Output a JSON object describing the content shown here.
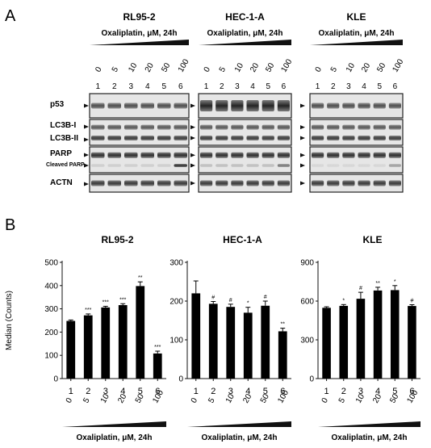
{
  "figure": {
    "panel_a_label": "A",
    "panel_b_label": "B",
    "treatment_label": "Oxaliplatin, μM, 24h",
    "doses": [
      "0",
      "5",
      "10",
      "20",
      "50",
      "100"
    ],
    "lanes": [
      "1",
      "2",
      "3",
      "4",
      "5",
      "6"
    ],
    "cell_lines": [
      "RL95-2",
      "HEC-1-A",
      "KLE"
    ],
    "blot_labels": {
      "p53": "p53",
      "lc3b_i": "LC3B-I",
      "lc3b_ii": "LC3B-II",
      "parp": "PARP",
      "cleaved_parp": "Cleaved PARP",
      "actn": "ACTN"
    },
    "y_axis_label": "Median (Counts)"
  },
  "chart_data": [
    {
      "type": "bar",
      "title": "RL95-2",
      "categories": [
        "1",
        "2",
        "3",
        "4",
        "5",
        "6"
      ],
      "dose_labels": [
        "0",
        "5",
        "10",
        "20",
        "50",
        "100"
      ],
      "values": [
        248,
        272,
        306,
        316,
        398,
        108
      ],
      "errors": [
        4,
        6,
        5,
        6,
        18,
        10
      ],
      "significance": [
        "",
        "***",
        "***",
        "***",
        "**",
        "***"
      ],
      "xlabel": "Oxaliplatin, μM, 24h",
      "ylabel": "Median (Counts)",
      "ylim": [
        0,
        500
      ],
      "yticks": [
        "0",
        "100",
        "200",
        "300",
        "400",
        "500"
      ]
    },
    {
      "type": "bar",
      "title": "HEC-1-A",
      "categories": [
        "1",
        "2",
        "3",
        "4",
        "5",
        "6"
      ],
      "dose_labels": [
        "0",
        "5",
        "10",
        "20",
        "50",
        "100"
      ],
      "values": [
        220,
        193,
        185,
        170,
        188,
        122
      ],
      "errors": [
        32,
        6,
        7,
        14,
        12,
        8
      ],
      "significance": [
        "",
        "#",
        "#",
        "*",
        "#",
        "**"
      ],
      "xlabel": "Oxaliplatin, μM, 24h",
      "ylim": [
        0,
        300
      ],
      "yticks": [
        "0",
        "100",
        "200",
        "300"
      ]
    },
    {
      "type": "bar",
      "title": "KLE",
      "categories": [
        "1",
        "2",
        "3",
        "4",
        "5",
        "6"
      ],
      "dose_labels": [
        "0",
        "5",
        "10",
        "20",
        "50",
        "100"
      ],
      "values": [
        548,
        563,
        618,
        682,
        685,
        562
      ],
      "errors": [
        8,
        10,
        50,
        25,
        35,
        10
      ],
      "significance": [
        "",
        "*",
        "#",
        "**",
        "*",
        "#"
      ],
      "xlabel": "Oxaliplatin, μM, 24h",
      "ylim": [
        0,
        900
      ],
      "yticks": [
        "0",
        "300",
        "600",
        "900"
      ]
    }
  ]
}
